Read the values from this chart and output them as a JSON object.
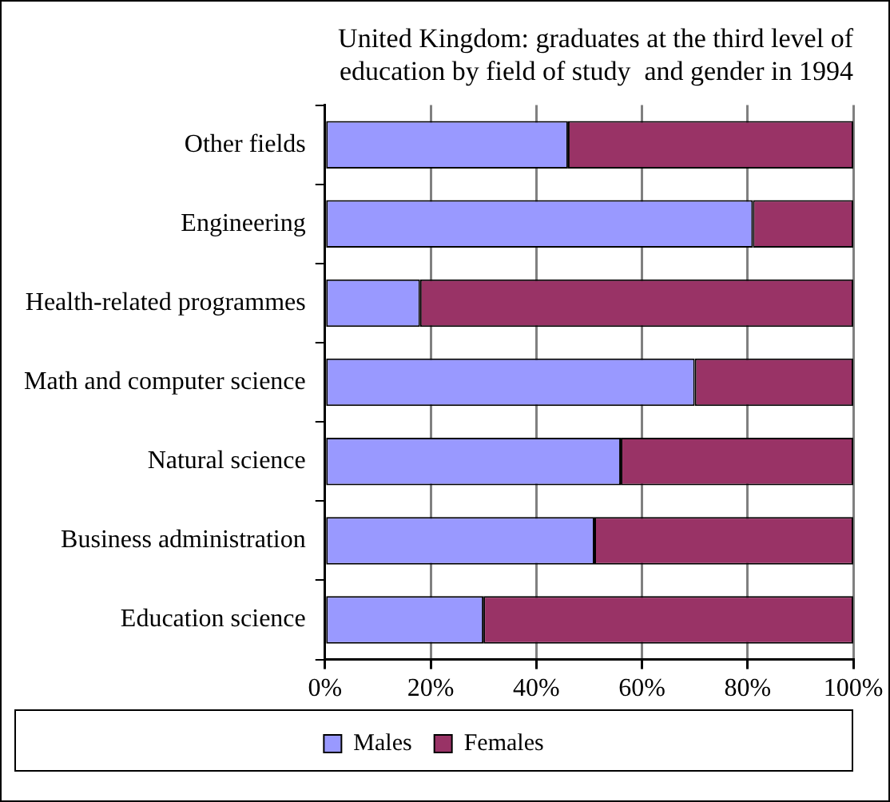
{
  "chart_data": {
    "type": "bar",
    "orientation": "horizontal",
    "stacked": true,
    "title": "United Kingdom: graduates at the third level of\neducation by field of study  and gender in 1994",
    "categories": [
      "Other fields",
      "Engineering",
      "Health-related programmes",
      "Math and computer science",
      "Natural science",
      "Business administration",
      "Education science"
    ],
    "series": [
      {
        "name": "Males",
        "color": "#9999ff",
        "values": [
          46,
          81,
          18,
          70,
          56,
          51,
          30
        ]
      },
      {
        "name": "Females",
        "color": "#993366",
        "values": [
          54,
          19,
          82,
          30,
          44,
          49,
          70
        ]
      }
    ],
    "xlim": [
      0,
      100
    ],
    "xticks": [
      {
        "value": 0,
        "label": "0%"
      },
      {
        "value": 20,
        "label": "20%"
      },
      {
        "value": 40,
        "label": "40%"
      },
      {
        "value": 60,
        "label": "60%"
      },
      {
        "value": 80,
        "label": "80%"
      },
      {
        "value": 100,
        "label": "100%"
      }
    ],
    "grid": "x",
    "legend": "bottom"
  }
}
